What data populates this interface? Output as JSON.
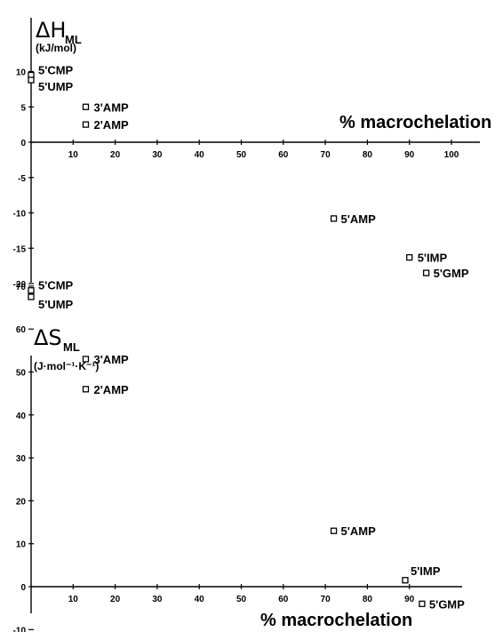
{
  "chart_data": [
    {
      "type": "scatter",
      "ylabel_symbol": "ΔH",
      "ylabel_subscript": "ML",
      "ylabel_unit": "(kJ/mol)",
      "xlabel": "% macrochelation",
      "xlim": [
        0,
        105
      ],
      "ylim": [
        -21,
        12
      ],
      "xticks": [
        10,
        20,
        30,
        40,
        50,
        60,
        70,
        80,
        90,
        100
      ],
      "yticks": [
        10,
        5,
        0,
        -5,
        -10,
        -15,
        -20
      ],
      "points": [
        {
          "label": "5'CMP",
          "x": 0,
          "y": 9.5
        },
        {
          "label": "5'UMP",
          "x": 0,
          "y": 8.8
        },
        {
          "label": "3'AMP",
          "x": 13,
          "y": 5
        },
        {
          "label": "2'AMP",
          "x": 13,
          "y": 2.5
        },
        {
          "label": "5'AMP",
          "x": 72,
          "y": -10.8
        },
        {
          "label": "5'IMP",
          "x": 90,
          "y": -16.3
        },
        {
          "label": "5'GMP",
          "x": 94,
          "y": -18.5
        }
      ]
    },
    {
      "type": "scatter",
      "ylabel_symbol": "ΔS",
      "ylabel_subscript": "ML",
      "ylabel_unit": "(J·mol⁻¹·K⁻¹)",
      "xlabel": "% macrochelation",
      "xlim": [
        0,
        100
      ],
      "ylim": [
        -12,
        75
      ],
      "xticks": [
        10,
        20,
        30,
        40,
        50,
        60,
        70,
        80,
        90
      ],
      "yticks": [
        70,
        60,
        50,
        40,
        30,
        20,
        10,
        0,
        -10
      ],
      "points": [
        {
          "label": "5'CMP",
          "x": 0,
          "y": 69
        },
        {
          "label": "5'UMP",
          "x": 0,
          "y": 67.5
        },
        {
          "label": "3'AMP",
          "x": 13,
          "y": 53
        },
        {
          "label": "2'AMP",
          "x": 13,
          "y": 46
        },
        {
          "label": "5'AMP",
          "x": 72,
          "y": 13
        },
        {
          "label": "5'IMP",
          "x": 89,
          "y": 1.5
        },
        {
          "label": "5'GMP",
          "x": 93,
          "y": -4
        }
      ]
    }
  ]
}
